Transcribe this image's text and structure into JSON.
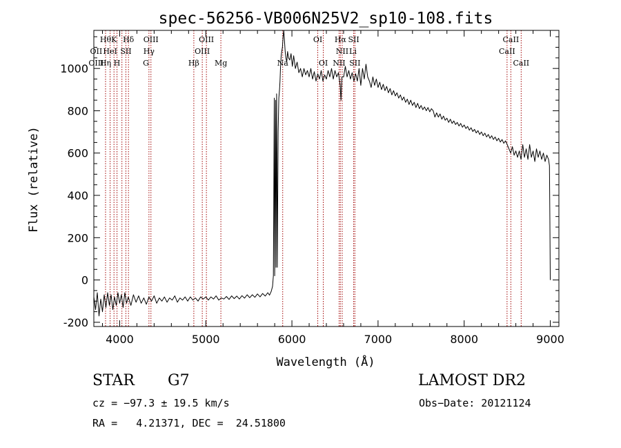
{
  "chart_data": {
    "type": "line",
    "title": "spec-56256-VB006N25V2_sp10-108.fits",
    "xlabel": "Wavelength (Å)",
    "ylabel": "Flux (relative)",
    "xlim": [
      3700,
      9100
    ],
    "ylim": [
      -220,
      1180
    ],
    "x_ticks": [
      4000,
      5000,
      6000,
      7000,
      8000,
      9000
    ],
    "x_tick_labels": [
      "4000",
      "5000",
      "6000",
      "7000",
      "8000",
      "9000"
    ],
    "y_ticks": [
      -200,
      0,
      200,
      400,
      600,
      800,
      1000
    ],
    "y_tick_labels": [
      "-200",
      "0",
      "200",
      "400",
      "600",
      "800",
      "1000"
    ],
    "grid": false,
    "series": [
      {
        "color": "#000000",
        "points": [
          [
            3700,
            -80
          ],
          [
            3720,
            -140
          ],
          [
            3740,
            -60
          ],
          [
            3760,
            -170
          ],
          [
            3780,
            -90
          ],
          [
            3800,
            -150
          ],
          [
            3820,
            -70
          ],
          [
            3840,
            -130
          ],
          [
            3860,
            -60
          ],
          [
            3880,
            -120
          ],
          [
            3900,
            -70
          ],
          [
            3920,
            -140
          ],
          [
            3940,
            -80
          ],
          [
            3960,
            -120
          ],
          [
            3980,
            -60
          ],
          [
            4000,
            -110
          ],
          [
            4020,
            -70
          ],
          [
            4040,
            -130
          ],
          [
            4060,
            -60
          ],
          [
            4080,
            -110
          ],
          [
            4100,
            -80
          ],
          [
            4130,
            -120
          ],
          [
            4160,
            -70
          ],
          [
            4190,
            -105
          ],
          [
            4220,
            -75
          ],
          [
            4250,
            -110
          ],
          [
            4280,
            -85
          ],
          [
            4310,
            -115
          ],
          [
            4340,
            -80
          ],
          [
            4370,
            -100
          ],
          [
            4400,
            -75
          ],
          [
            4430,
            -110
          ],
          [
            4460,
            -85
          ],
          [
            4490,
            -100
          ],
          [
            4520,
            -80
          ],
          [
            4550,
            -105
          ],
          [
            4580,
            -85
          ],
          [
            4610,
            -95
          ],
          [
            4640,
            -75
          ],
          [
            4670,
            -105
          ],
          [
            4700,
            -85
          ],
          [
            4730,
            -95
          ],
          [
            4760,
            -80
          ],
          [
            4790,
            -100
          ],
          [
            4820,
            -80
          ],
          [
            4850,
            -95
          ],
          [
            4880,
            -85
          ],
          [
            4910,
            -100
          ],
          [
            4940,
            -80
          ],
          [
            4970,
            -90
          ],
          [
            5000,
            -80
          ],
          [
            5030,
            -95
          ],
          [
            5060,
            -80
          ],
          [
            5090,
            -90
          ],
          [
            5120,
            -75
          ],
          [
            5150,
            -95
          ],
          [
            5180,
            -85
          ],
          [
            5210,
            -90
          ],
          [
            5240,
            -78
          ],
          [
            5270,
            -92
          ],
          [
            5300,
            -75
          ],
          [
            5330,
            -88
          ],
          [
            5360,
            -76
          ],
          [
            5390,
            -90
          ],
          [
            5420,
            -74
          ],
          [
            5450,
            -86
          ],
          [
            5480,
            -70
          ],
          [
            5510,
            -84
          ],
          [
            5540,
            -70
          ],
          [
            5570,
            -82
          ],
          [
            5600,
            -66
          ],
          [
            5630,
            -80
          ],
          [
            5660,
            -64
          ],
          [
            5690,
            -76
          ],
          [
            5720,
            -60
          ],
          [
            5740,
            -72
          ],
          [
            5760,
            -54
          ],
          [
            5775,
            -30
          ],
          [
            5785,
            20
          ],
          [
            5795,
            860
          ],
          [
            5800,
            20
          ],
          [
            5810,
            850
          ],
          [
            5815,
            60
          ],
          [
            5822,
            880
          ],
          [
            5830,
            60
          ],
          [
            5840,
            700
          ],
          [
            5848,
            860
          ],
          [
            5856,
            900
          ],
          [
            5862,
            940
          ],
          [
            5868,
            1010
          ],
          [
            5875,
            1060
          ],
          [
            5882,
            1080
          ],
          [
            5890,
            1100
          ],
          [
            5898,
            1150
          ],
          [
            5906,
            1180
          ],
          [
            5914,
            1130
          ],
          [
            5922,
            1080
          ],
          [
            5930,
            1050
          ],
          [
            5940,
            1030
          ],
          [
            5950,
            1080
          ],
          [
            5960,
            1050
          ],
          [
            5975,
            1040
          ],
          [
            5990,
            1070
          ],
          [
            6005,
            1010
          ],
          [
            6020,
            1060
          ],
          [
            6040,
            1000
          ],
          [
            6060,
            1030
          ],
          [
            6080,
            980
          ],
          [
            6100,
            1000
          ],
          [
            6120,
            960
          ],
          [
            6140,
            1000
          ],
          [
            6160,
            970
          ],
          [
            6180,
            990
          ],
          [
            6200,
            960
          ],
          [
            6220,
            1000
          ],
          [
            6240,
            950
          ],
          [
            6260,
            985
          ],
          [
            6280,
            940
          ],
          [
            6300,
            975
          ],
          [
            6320,
            950
          ],
          [
            6340,
            990
          ],
          [
            6360,
            940
          ],
          [
            6380,
            970
          ],
          [
            6400,
            950
          ],
          [
            6420,
            990
          ],
          [
            6440,
            960
          ],
          [
            6460,
            1000
          ],
          [
            6480,
            950
          ],
          [
            6500,
            990
          ],
          [
            6520,
            960
          ],
          [
            6540,
            980
          ],
          [
            6560,
            920
          ],
          [
            6570,
            850
          ],
          [
            6580,
            960
          ],
          [
            6600,
            960
          ],
          [
            6620,
            1010
          ],
          [
            6640,
            960
          ],
          [
            6660,
            990
          ],
          [
            6680,
            950
          ],
          [
            6700,
            980
          ],
          [
            6720,
            940
          ],
          [
            6740,
            975
          ],
          [
            6760,
            940
          ],
          [
            6780,
            1000
          ],
          [
            6800,
            920
          ],
          [
            6820,
            1000
          ],
          [
            6840,
            950
          ],
          [
            6860,
            1020
          ],
          [
            6880,
            960
          ],
          [
            6900,
            940
          ],
          [
            6920,
            910
          ],
          [
            6940,
            960
          ],
          [
            6960,
            920
          ],
          [
            6980,
            950
          ],
          [
            7000,
            910
          ],
          [
            7020,
            935
          ],
          [
            7040,
            900
          ],
          [
            7060,
            925
          ],
          [
            7080,
            895
          ],
          [
            7100,
            915
          ],
          [
            7120,
            885
          ],
          [
            7140,
            905
          ],
          [
            7160,
            875
          ],
          [
            7180,
            895
          ],
          [
            7200,
            870
          ],
          [
            7220,
            885
          ],
          [
            7240,
            860
          ],
          [
            7260,
            875
          ],
          [
            7280,
            850
          ],
          [
            7300,
            865
          ],
          [
            7320,
            840
          ],
          [
            7340,
            855
          ],
          [
            7360,
            830
          ],
          [
            7380,
            850
          ],
          [
            7400,
            825
          ],
          [
            7420,
            840
          ],
          [
            7440,
            815
          ],
          [
            7460,
            835
          ],
          [
            7480,
            810
          ],
          [
            7500,
            825
          ],
          [
            7520,
            805
          ],
          [
            7540,
            818
          ],
          [
            7560,
            800
          ],
          [
            7580,
            815
          ],
          [
            7600,
            795
          ],
          [
            7620,
            810
          ],
          [
            7640,
            800
          ],
          [
            7660,
            770
          ],
          [
            7680,
            790
          ],
          [
            7700,
            770
          ],
          [
            7720,
            785
          ],
          [
            7740,
            760
          ],
          [
            7760,
            775
          ],
          [
            7780,
            755
          ],
          [
            7800,
            765
          ],
          [
            7820,
            745
          ],
          [
            7840,
            760
          ],
          [
            7860,
            740
          ],
          [
            7880,
            752
          ],
          [
            7900,
            735
          ],
          [
            7920,
            745
          ],
          [
            7940,
            728
          ],
          [
            7960,
            740
          ],
          [
            7980,
            722
          ],
          [
            8000,
            733
          ],
          [
            8020,
            716
          ],
          [
            8040,
            726
          ],
          [
            8060,
            708
          ],
          [
            8080,
            720
          ],
          [
            8100,
            702
          ],
          [
            8120,
            712
          ],
          [
            8140,
            695
          ],
          [
            8160,
            706
          ],
          [
            8180,
            688
          ],
          [
            8200,
            700
          ],
          [
            8220,
            682
          ],
          [
            8240,
            694
          ],
          [
            8260,
            676
          ],
          [
            8280,
            688
          ],
          [
            8300,
            670
          ],
          [
            8320,
            682
          ],
          [
            8340,
            664
          ],
          [
            8360,
            676
          ],
          [
            8380,
            658
          ],
          [
            8400,
            670
          ],
          [
            8420,
            652
          ],
          [
            8440,
            664
          ],
          [
            8460,
            646
          ],
          [
            8480,
            658
          ],
          [
            8500,
            640
          ],
          [
            8520,
            620
          ],
          [
            8540,
            600
          ],
          [
            8560,
            630
          ],
          [
            8580,
            590
          ],
          [
            8600,
            610
          ],
          [
            8620,
            580
          ],
          [
            8640,
            610
          ],
          [
            8660,
            570
          ],
          [
            8680,
            640
          ],
          [
            8700,
            580
          ],
          [
            8720,
            620
          ],
          [
            8740,
            570
          ],
          [
            8760,
            640
          ],
          [
            8780,
            580
          ],
          [
            8800,
            610
          ],
          [
            8820,
            560
          ],
          [
            8840,
            620
          ],
          [
            8860,
            580
          ],
          [
            8880,
            610
          ],
          [
            8900,
            570
          ],
          [
            8920,
            600
          ],
          [
            8940,
            560
          ],
          [
            8960,
            590
          ],
          [
            8980,
            570
          ],
          [
            8990,
            540
          ],
          [
            8995,
            300
          ],
          [
            9000,
            0
          ]
        ]
      }
    ],
    "line_markers": {
      "color": "#a00000",
      "wavelengths": [
        3836,
        3889,
        3934,
        3969,
        4026,
        4072,
        4102,
        4340,
        4363,
        4861,
        4959,
        5007,
        5175,
        5893,
        6300,
        6364,
        6548,
        6563,
        6584,
        6717,
        6731,
        8498,
        8542,
        8662
      ]
    },
    "line_labels": [
      {
        "text": "Hθ",
        "x": 3836,
        "row": 1
      },
      {
        "text": "K",
        "x": 3934,
        "row": 1
      },
      {
        "text": "Hδ",
        "x": 4102,
        "row": 1
      },
      {
        "text": "OIII",
        "x": 4363,
        "row": 1
      },
      {
        "text": "OIII",
        "x": 5007,
        "row": 1
      },
      {
        "text": "OI",
        "x": 6300,
        "row": 1
      },
      {
        "text": "Hα",
        "x": 6563,
        "row": 1
      },
      {
        "text": "SII",
        "x": 6717,
        "row": 1
      },
      {
        "text": "CaII",
        "x": 8542,
        "row": 1
      },
      {
        "text": "OII",
        "x": 3727,
        "row": 2
      },
      {
        "text": "HeI",
        "x": 3889,
        "row": 2
      },
      {
        "text": "SII",
        "x": 4072,
        "row": 2
      },
      {
        "text": "Hγ",
        "x": 4340,
        "row": 2
      },
      {
        "text": "OIII",
        "x": 4959,
        "row": 2
      },
      {
        "text": "NII",
        "x": 6584,
        "row": 2
      },
      {
        "text": "Li",
        "x": 6708,
        "row": 2
      },
      {
        "text": "CaII",
        "x": 8498,
        "row": 2
      },
      {
        "text": "OIII",
        "x": 3727,
        "row": 3
      },
      {
        "text": "Hη",
        "x": 3836,
        "row": 3
      },
      {
        "text": "H",
        "x": 3969,
        "row": 3
      },
      {
        "text": "G",
        "x": 4305,
        "row": 3
      },
      {
        "text": "Hβ",
        "x": 4861,
        "row": 3
      },
      {
        "text": "Mg",
        "x": 5175,
        "row": 3
      },
      {
        "text": "Na",
        "x": 5893,
        "row": 3
      },
      {
        "text": "OI",
        "x": 6364,
        "row": 3
      },
      {
        "text": "NII",
        "x": 6548,
        "row": 3
      },
      {
        "text": "SII",
        "x": 6731,
        "row": 3
      },
      {
        "text": "CaII",
        "x": 8662,
        "row": 3
      }
    ]
  },
  "info": {
    "object_class": "STAR",
    "subclass": "G7",
    "release": "LAMOST DR2",
    "cz": "cz = −97.3 ± 19.5 km/s",
    "obs_date": "Obs−Date: 20121124",
    "coords": "RA =   4.21371, DEC =  24.51800"
  }
}
